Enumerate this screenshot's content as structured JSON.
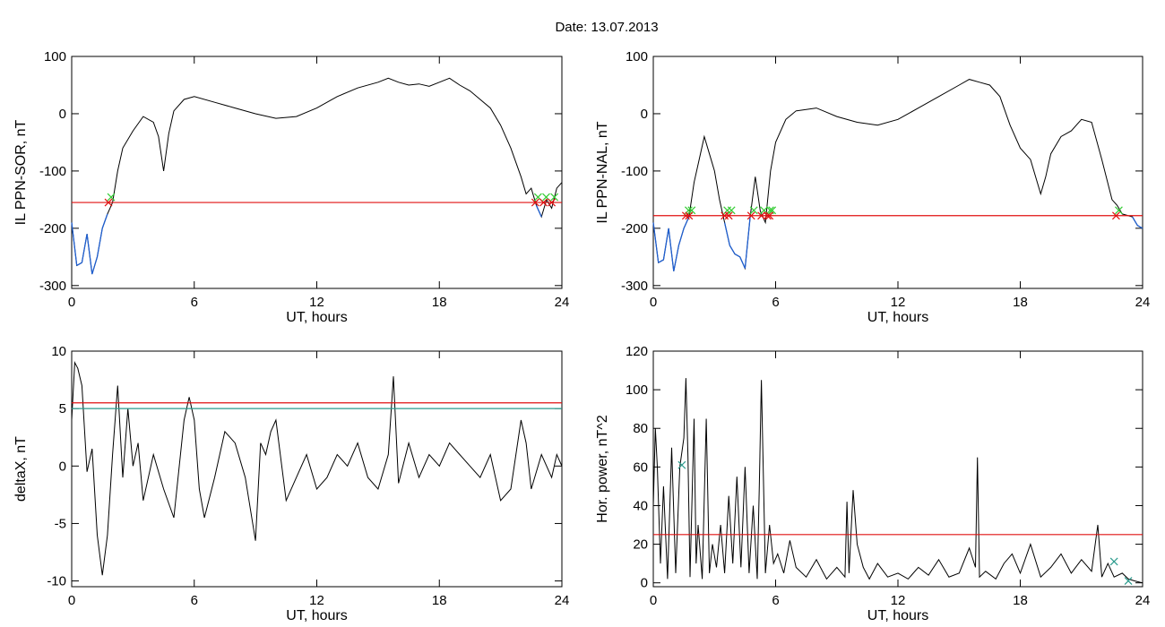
{
  "figure_title": "Date:  13.07.2013",
  "colors": {
    "threshold_red": "#e01010",
    "threshold_teal": "#2a9a8c",
    "trace": "#000000",
    "below_threshold": "#1f5fd0",
    "cross_marker": "#e01010",
    "green_marker": "#33cc33",
    "power_marker": "#2a9a8c"
  },
  "chart_data": [
    {
      "type": "line",
      "title": "",
      "xlabel": "UT, hours",
      "ylabel": "IL PPN-SOR, nT",
      "xlim": [
        0,
        24
      ],
      "ylim": [
        -305,
        100
      ],
      "xticks": [
        0,
        6,
        12,
        18,
        24
      ],
      "yticks": [
        -300,
        -200,
        -100,
        0,
        100
      ],
      "grid": false,
      "series": [
        {
          "x": [
            0,
            0.25,
            0.5,
            0.75,
            1.0,
            1.25,
            1.5,
            1.75,
            2.0,
            2.25,
            2.5,
            3.0,
            3.5,
            4.0,
            4.25,
            4.5,
            4.75,
            5.0,
            5.5,
            6.0,
            7.0,
            8.0,
            9.0,
            10.0,
            11.0,
            12.0,
            13.0,
            14.0,
            15.0,
            15.5,
            16.0,
            16.5,
            17.0,
            17.5,
            18.0,
            18.5,
            19.0,
            19.5,
            20.0,
            20.5,
            21.0,
            21.5,
            22.0,
            22.25,
            22.5,
            22.75,
            23.0,
            23.25,
            23.5,
            23.75,
            24.0
          ],
          "y": [
            -190,
            -265,
            -260,
            -210,
            -280,
            -250,
            -200,
            -175,
            -155,
            -100,
            -60,
            -30,
            -5,
            -15,
            -40,
            -100,
            -35,
            5,
            25,
            30,
            20,
            10,
            0,
            -8,
            -5,
            10,
            30,
            45,
            55,
            62,
            55,
            50,
            52,
            48,
            55,
            62,
            50,
            40,
            25,
            10,
            -20,
            -60,
            -110,
            -140,
            -130,
            -160,
            -180,
            -150,
            -165,
            -130,
            -120
          ]
        }
      ],
      "threshold": -155,
      "crossings_x": [
        1.8,
        22.7,
        23.1,
        23.5
      ],
      "notes_markers": "red x at threshold crossings, green x markers near them; trace below threshold drawn in blue"
    },
    {
      "type": "line",
      "title": "",
      "xlabel": "UT, hours",
      "ylabel": "IL PPN-NAL, nT",
      "xlim": [
        0,
        24
      ],
      "ylim": [
        -305,
        100
      ],
      "xticks": [
        0,
        6,
        12,
        18,
        24
      ],
      "yticks": [
        -300,
        -200,
        -100,
        0,
        100
      ],
      "grid": false,
      "series": [
        {
          "x": [
            0,
            0.25,
            0.5,
            0.75,
            1.0,
            1.25,
            1.5,
            1.75,
            2.0,
            2.25,
            2.5,
            2.75,
            3.0,
            3.25,
            3.5,
            3.75,
            4.0,
            4.25,
            4.5,
            4.75,
            5.0,
            5.25,
            5.5,
            5.75,
            6.0,
            6.5,
            7.0,
            8.0,
            9.0,
            10.0,
            11.0,
            12.0,
            13.0,
            14.0,
            15.0,
            15.5,
            16.0,
            16.5,
            17.0,
            17.5,
            18.0,
            18.5,
            19.0,
            19.25,
            19.5,
            20.0,
            20.5,
            21.0,
            21.5,
            22.0,
            22.5,
            22.75,
            23.0,
            23.5,
            23.75,
            24.0
          ],
          "y": [
            -190,
            -260,
            -255,
            -200,
            -275,
            -230,
            -200,
            -180,
            -120,
            -80,
            -40,
            -70,
            -100,
            -150,
            -190,
            -230,
            -245,
            -250,
            -270,
            -180,
            -110,
            -170,
            -190,
            -100,
            -50,
            -10,
            5,
            10,
            -5,
            -15,
            -20,
            -10,
            10,
            30,
            50,
            60,
            55,
            50,
            30,
            -20,
            -60,
            -80,
            -140,
            -110,
            -70,
            -40,
            -30,
            -10,
            -15,
            -80,
            -150,
            -160,
            -175,
            -180,
            -195,
            -200
          ]
        }
      ],
      "threshold": -178,
      "crossings_x": [
        1.6,
        1.75,
        3.5,
        3.7,
        4.8,
        5.3,
        5.6,
        5.7,
        22.7
      ],
      "notes_markers": "red x at threshold crossings, green x markers near them; trace below threshold drawn in blue"
    },
    {
      "type": "line",
      "title": "",
      "xlabel": "UT, hours",
      "ylabel": "deltaX, nT",
      "xlim": [
        0,
        24
      ],
      "ylim": [
        -10.5,
        10
      ],
      "xticks": [
        0,
        6,
        12,
        18,
        24
      ],
      "yticks": [
        -10,
        -5,
        0,
        5,
        10
      ],
      "grid": false,
      "series": [
        {
          "x": [
            0,
            0.15,
            0.3,
            0.5,
            0.75,
            1.0,
            1.25,
            1.5,
            1.75,
            2.0,
            2.25,
            2.5,
            2.75,
            3.0,
            3.25,
            3.5,
            4.0,
            4.5,
            5.0,
            5.5,
            5.75,
            6.0,
            6.25,
            6.5,
            7.0,
            7.5,
            8.0,
            8.5,
            9.0,
            9.25,
            9.5,
            9.75,
            10.0,
            10.5,
            11.0,
            11.5,
            12.0,
            12.5,
            13.0,
            13.5,
            14.0,
            14.5,
            15.0,
            15.5,
            15.75,
            16.0,
            16.5,
            17.0,
            17.5,
            18.0,
            18.5,
            19.0,
            19.5,
            20.0,
            20.5,
            21.0,
            21.5,
            22.0,
            22.25,
            22.5,
            23.0,
            23.5,
            23.75,
            24.0
          ],
          "y": [
            4,
            9,
            8.5,
            7,
            -0.5,
            1.5,
            -6,
            -9.5,
            -6,
            1,
            7,
            -1,
            5,
            0,
            2,
            -3,
            1,
            -2,
            -4.5,
            4,
            6,
            4,
            -2,
            -4.5,
            -1,
            3,
            2,
            -1,
            -6.5,
            2,
            1,
            3,
            4,
            -3,
            -1,
            1,
            -2,
            -1,
            1,
            0,
            2,
            -1,
            -2,
            1,
            7.8,
            -1.5,
            2,
            -1,
            1,
            0,
            2,
            1,
            0,
            -1,
            1,
            -3,
            -2,
            4,
            2,
            -2,
            1,
            -1,
            1,
            0
          ]
        }
      ],
      "thresholds": [
        5.5,
        5
      ]
    },
    {
      "type": "line",
      "title": "",
      "xlabel": "UT, hours",
      "ylabel": "Hor. power, nT^2",
      "xlim": [
        0,
        24
      ],
      "ylim": [
        -2,
        120
      ],
      "xticks": [
        0,
        6,
        12,
        18,
        24
      ],
      "yticks": [
        0,
        20,
        40,
        60,
        80,
        100,
        120
      ],
      "grid": false,
      "series": [
        {
          "x": [
            0,
            0.1,
            0.2,
            0.35,
            0.5,
            0.7,
            0.9,
            1.1,
            1.3,
            1.5,
            1.6,
            1.7,
            1.8,
            2.0,
            2.1,
            2.2,
            2.4,
            2.6,
            2.75,
            2.9,
            3.1,
            3.3,
            3.5,
            3.7,
            3.9,
            4.1,
            4.3,
            4.5,
            4.7,
            4.9,
            5.1,
            5.2,
            5.3,
            5.5,
            5.7,
            5.9,
            6.1,
            6.4,
            6.7,
            7.0,
            7.5,
            8.0,
            8.5,
            9.0,
            9.4,
            9.5,
            9.6,
            9.8,
            10.0,
            10.3,
            10.6,
            11.0,
            11.5,
            12.0,
            12.5,
            13.0,
            13.5,
            14.0,
            14.5,
            15.0,
            15.5,
            15.8,
            15.9,
            16.0,
            16.3,
            16.8,
            17.2,
            17.6,
            18.0,
            18.5,
            19.0,
            19.5,
            20.0,
            20.5,
            21.0,
            21.5,
            21.8,
            22.0,
            22.3,
            22.6,
            23.0,
            23.3,
            23.6,
            24.0
          ],
          "y": [
            40,
            80,
            60,
            10,
            50,
            2,
            70,
            5,
            60,
            75,
            106,
            65,
            3,
            85,
            10,
            30,
            2,
            85,
            5,
            20,
            8,
            30,
            5,
            45,
            10,
            55,
            8,
            60,
            5,
            40,
            2,
            50,
            105,
            5,
            30,
            10,
            15,
            5,
            22,
            8,
            3,
            12,
            2,
            8,
            3,
            42,
            5,
            48,
            20,
            8,
            2,
            10,
            3,
            5,
            2,
            8,
            4,
            12,
            3,
            5,
            18,
            8,
            65,
            3,
            6,
            2,
            10,
            15,
            5,
            20,
            3,
            8,
            15,
            5,
            12,
            6,
            30,
            3,
            10,
            3,
            5,
            2,
            1,
            0
          ]
        }
      ],
      "threshold": 25,
      "markers": [
        {
          "x": 1.4,
          "y": 61
        },
        {
          "x": 22.6,
          "y": 11
        },
        {
          "x": 23.3,
          "y": 1
        }
      ]
    }
  ]
}
